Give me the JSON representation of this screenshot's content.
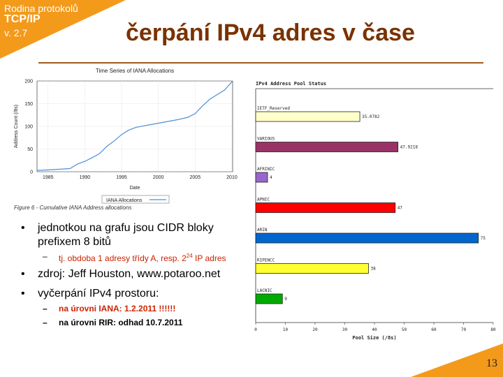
{
  "corner": {
    "line1": "Rodina protokolů",
    "line2": "TCP/IP",
    "line3": "v. 2.7",
    "color": "#f39a1b"
  },
  "slide": {
    "title": "čerpání IPv4 adres v čase",
    "page_number": "13"
  },
  "left_chart": {
    "caption": "Figure 6 - Cumulative IANA Address allocations",
    "chart_data": {
      "type": "line",
      "title": "Time Series of IANA Allocations",
      "xlabel": "Date",
      "ylabel": "Address Count (/8s)",
      "xlim": [
        1983.5,
        2010.1
      ],
      "ylim": [
        0,
        200
      ],
      "x_ticks": [
        1985,
        1990,
        1995,
        2000,
        2005,
        2010
      ],
      "y_ticks": [
        0,
        50,
        100,
        150,
        200
      ],
      "grid": true,
      "legend": "bottom-center",
      "series": [
        {
          "name": "IANA Allocations",
          "x": [
            1983.5,
            1985,
            1987,
            1988,
            1989,
            1990,
            1991,
            1992,
            1993,
            1994,
            1995,
            1996,
            1997,
            1998,
            1999,
            2000,
            2001,
            2002,
            2003,
            2004,
            2005,
            2006,
            2007,
            2008,
            2009,
            2010.1
          ],
          "values": [
            3,
            4,
            6,
            7,
            17,
            23,
            31,
            40,
            56,
            68,
            82,
            92,
            98,
            101,
            104,
            107,
            110,
            113,
            116,
            120,
            128,
            145,
            160,
            170,
            180,
            200
          ]
        }
      ]
    }
  },
  "right_chart": {
    "chart_data": {
      "type": "bar",
      "orientation": "horizontal",
      "title": "IPv4 Address Pool Status",
      "xlabel": "Pool Size (/8s)",
      "xlim": [
        0,
        80
      ],
      "x_ticks": [
        0,
        10,
        20,
        30,
        40,
        50,
        60,
        70,
        80
      ],
      "categories": [
        "IETF_Reserved",
        "VARIOUS",
        "AFRINIC",
        "APNIC",
        "ARIN",
        "RIPENCC",
        "LACNIC"
      ],
      "values": [
        35.0782,
        47.9218,
        4,
        47,
        75,
        38,
        9
      ],
      "value_labels": [
        "35.0782",
        "47.9218",
        "4",
        "47",
        "75",
        "38",
        "9"
      ],
      "colors": [
        "#ffffcc",
        "#993366",
        "#9966cc",
        "#ff0000",
        "#0066cc",
        "#ffff33",
        "#00aa00"
      ]
    }
  },
  "bullets": [
    {
      "text": "jednotkou na grafu jsou CIDR bloky  prefixem 8 bitů",
      "sub": [
        {
          "pre": "tj. obdoba 1 adresy třídy A, resp. 2",
          "sup": "24",
          "post": " IP adres"
        }
      ]
    },
    {
      "text": "zdroj: Jeff Houston, www.potaroo.net",
      "sub": []
    },
    {
      "text": "vyčerpání IPv4 prostoru:",
      "sub": [
        {
          "text": "na úrovni IANA: 1.2.2011  !!!!!!"
        },
        {
          "text": "na úrovni RIR: odhad 10.7.2011"
        }
      ]
    }
  ]
}
